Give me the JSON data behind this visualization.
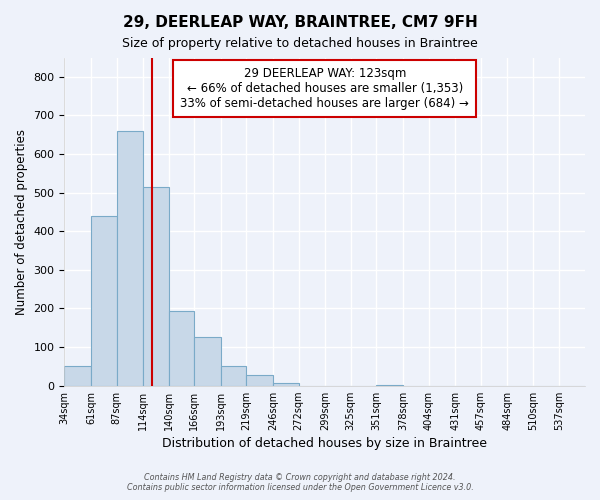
{
  "title": "29, DEERLEAP WAY, BRAINTREE, CM7 9FH",
  "subtitle": "Size of property relative to detached houses in Braintree",
  "xlabel": "Distribution of detached houses by size in Braintree",
  "ylabel": "Number of detached properties",
  "bar_edges": [
    34,
    61,
    87,
    114,
    140,
    166,
    193,
    219,
    246,
    272,
    299,
    325,
    351,
    378,
    404,
    431,
    457,
    484,
    510,
    537,
    563
  ],
  "bar_heights": [
    50,
    440,
    660,
    515,
    193,
    127,
    50,
    27,
    8,
    0,
    0,
    0,
    2,
    0,
    0,
    0,
    0,
    0,
    0,
    0
  ],
  "bar_color": "#c8d8e8",
  "bar_edge_color": "#7aaac8",
  "property_line_x": 123,
  "property_line_color": "#cc0000",
  "annotation_title": "29 DEERLEAP WAY: 123sqm",
  "annotation_line1": "← 66% of detached houses are smaller (1,353)",
  "annotation_line2": "33% of semi-detached houses are larger (684) →",
  "annotation_box_color": "#cc0000",
  "ylim": [
    0,
    850
  ],
  "yticks": [
    0,
    100,
    200,
    300,
    400,
    500,
    600,
    700,
    800
  ],
  "footer1": "Contains HM Land Registry data © Crown copyright and database right 2024.",
  "footer2": "Contains public sector information licensed under the Open Government Licence v3.0.",
  "background_color": "#eef2fa",
  "grid_color": "#ffffff"
}
